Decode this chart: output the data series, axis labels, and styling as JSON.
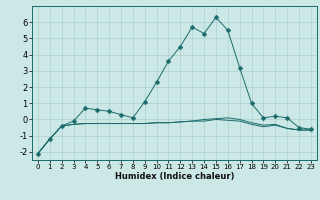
{
  "title": "",
  "xlabel": "Humidex (Indice chaleur)",
  "background_color": "#cce8e6",
  "grid_color": "#aacfcd",
  "line_color": "#1a6b6b",
  "xlim": [
    -0.5,
    23.5
  ],
  "ylim": [
    -2.5,
    7.0
  ],
  "xticks": [
    0,
    1,
    2,
    3,
    4,
    5,
    6,
    7,
    8,
    9,
    10,
    11,
    12,
    13,
    14,
    15,
    16,
    17,
    18,
    19,
    20,
    21,
    22,
    23
  ],
  "yticks": [
    -2,
    -1,
    0,
    1,
    2,
    3,
    4,
    5,
    6
  ],
  "curve1_x": [
    0,
    1,
    2,
    3,
    4,
    5,
    6,
    7,
    8,
    9,
    10,
    11,
    12,
    13,
    14,
    15,
    16,
    17,
    18,
    19,
    20,
    21,
    22,
    23
  ],
  "curve1_y": [
    -2.1,
    -1.2,
    -0.4,
    -0.1,
    0.7,
    0.6,
    0.5,
    0.3,
    0.1,
    1.1,
    2.3,
    3.6,
    4.5,
    5.7,
    5.3,
    6.3,
    5.5,
    3.2,
    1.0,
    0.1,
    0.2,
    0.1,
    -0.5,
    -0.6
  ],
  "curve2_x": [
    0,
    1,
    2,
    3,
    4,
    5,
    6,
    7,
    8,
    9,
    10,
    11,
    12,
    13,
    14,
    15,
    16,
    17,
    18,
    19,
    20,
    21,
    22,
    23
  ],
  "curve2_y": [
    -2.1,
    -1.2,
    -0.4,
    -0.3,
    -0.25,
    -0.25,
    -0.25,
    -0.25,
    -0.25,
    -0.25,
    -0.2,
    -0.2,
    -0.15,
    -0.1,
    -0.1,
    0.0,
    -0.05,
    -0.1,
    -0.3,
    -0.45,
    -0.35,
    -0.55,
    -0.65,
    -0.65
  ],
  "curve3_x": [
    0,
    1,
    2,
    3,
    4,
    5,
    6,
    7,
    8,
    9,
    10,
    11,
    12,
    13,
    14,
    15,
    16,
    17,
    18,
    19,
    20,
    21,
    22,
    23
  ],
  "curve3_y": [
    -2.1,
    -1.2,
    -0.4,
    -0.3,
    -0.25,
    -0.25,
    -0.25,
    -0.25,
    -0.25,
    -0.25,
    -0.2,
    -0.2,
    -0.15,
    -0.1,
    0.0,
    0.05,
    0.1,
    0.0,
    -0.2,
    -0.35,
    -0.3,
    -0.55,
    -0.65,
    -0.65
  ],
  "markersize": 2.5,
  "lw": 0.7
}
